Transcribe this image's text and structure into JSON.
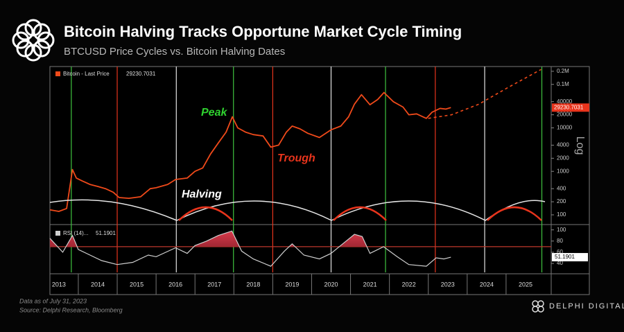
{
  "header": {
    "title": "Bitcoin Halving Tracks Opportune Market Cycle Timing",
    "subtitle": "BTCUSD Price Cycles vs. Bitcoin Halving Dates"
  },
  "footer": {
    "note": "Data as of July 31, 2023",
    "source": "Source: Delphi Research, Bloomberg",
    "brand": "DELPHI DIGITAL"
  },
  "chart_data": [
    {
      "type": "line",
      "log_scale": true,
      "legend": "upper left",
      "axis_label": "Log",
      "xlim": [
        2013.27,
        2026.0
      ],
      "ylim": [
        62,
        257000
      ],
      "yticks": [
        100,
        200,
        400,
        1000,
        2000,
        4000,
        10000,
        20000,
        40000,
        {
          "value": 100000,
          "label": "0.1M"
        },
        {
          "value": 200000,
          "label": "0.2M"
        }
      ],
      "series": [
        {
          "name": "Bitcoin - Last Price",
          "color": "#f04a1a",
          "x": [
            2013.27,
            2013.5,
            2013.7,
            2013.85,
            2013.95,
            2014.1,
            2014.3,
            2014.5,
            2014.7,
            2014.9,
            2015.05,
            2015.3,
            2015.6,
            2015.85,
            2016.0,
            2016.3,
            2016.5,
            2016.8,
            2017.0,
            2017.2,
            2017.4,
            2017.6,
            2017.8,
            2017.96,
            2018.1,
            2018.3,
            2018.5,
            2018.75,
            2018.95,
            2019.15,
            2019.35,
            2019.5,
            2019.7,
            2019.9,
            2020.2,
            2020.5,
            2020.75,
            2020.95,
            2021.1,
            2021.28,
            2021.5,
            2021.7,
            2021.86,
            2022.1,
            2022.35,
            2022.5,
            2022.7,
            2022.95,
            2023.1,
            2023.3,
            2023.45,
            2023.58
          ],
          "values": [
            130,
            120,
            140,
            1100,
            700,
            600,
            500,
            450,
            400,
            330,
            250,
            240,
            260,
            400,
            420,
            500,
            650,
            700,
            1000,
            1200,
            2500,
            4500,
            8000,
            18000,
            10000,
            8000,
            7000,
            6500,
            3600,
            4000,
            8000,
            11000,
            9500,
            7500,
            6000,
            9000,
            11000,
            18000,
            35000,
            58000,
            34000,
            45000,
            65000,
            40000,
            30000,
            20000,
            21000,
            16500,
            23000,
            28000,
            27000,
            29230.7031
          ]
        }
      ],
      "last_value": 29230.7031,
      "projection": {
        "color": "#f04a1a",
        "dashed": true,
        "x": [
          2023.0,
          2023.6,
          2024.3,
          2025.0,
          2025.9
        ],
        "values": [
          16500,
          20000,
          35000,
          80000,
          220000
        ]
      },
      "peak_lines": {
        "color": "#3fc43f",
        "x": [
          2013.82,
          2017.99,
          2021.9,
          2025.92
        ]
      },
      "trough_lines": {
        "color": "#e8341c",
        "x": [
          2015.0,
          2019.0,
          2023.18
        ]
      },
      "halving_lines": {
        "color": "#e6e6e6",
        "x": [
          2016.52,
          2020.5,
          2024.45
        ]
      },
      "annotations": [
        {
          "text": "Peak",
          "color": "#2fd22f"
        },
        {
          "text": "Trough",
          "color": "#e8341c"
        },
        {
          "text": "Halving",
          "color": "#ffffff"
        }
      ]
    },
    {
      "type": "line",
      "xlim": [
        2013.27,
        2026.0
      ],
      "ylim": [
        24,
        107
      ],
      "yticks": [
        40,
        60,
        80,
        100
      ],
      "xticks": [
        2013,
        2014,
        2015,
        2016,
        2017,
        2018,
        2019,
        2020,
        2021,
        2022,
        2023,
        2024,
        2025
      ],
      "threshold": 70,
      "threshold_color": "#c0392b",
      "series": [
        {
          "name": "RSI (14)...",
          "color": "#cfcfcf",
          "x": [
            2013.27,
            2013.4,
            2013.6,
            2013.85,
            2014.0,
            2014.3,
            2014.6,
            2015.0,
            2015.4,
            2015.8,
            2016.0,
            2016.5,
            2016.8,
            2017.0,
            2017.3,
            2017.6,
            2017.95,
            2018.2,
            2018.5,
            2018.95,
            2019.3,
            2019.5,
            2019.8,
            2020.2,
            2020.5,
            2020.8,
            2021.1,
            2021.3,
            2021.5,
            2021.85,
            2022.2,
            2022.5,
            2022.95,
            2023.2,
            2023.4,
            2023.58
          ],
          "values": [
            85,
            75,
            60,
            90,
            65,
            55,
            45,
            38,
            42,
            55,
            52,
            68,
            58,
            72,
            80,
            90,
            98,
            62,
            48,
            35,
            62,
            75,
            55,
            48,
            58,
            75,
            92,
            88,
            58,
            70,
            52,
            38,
            35,
            50,
            48,
            51.1901
          ]
        }
      ],
      "last_value": 51.1901
    }
  ]
}
